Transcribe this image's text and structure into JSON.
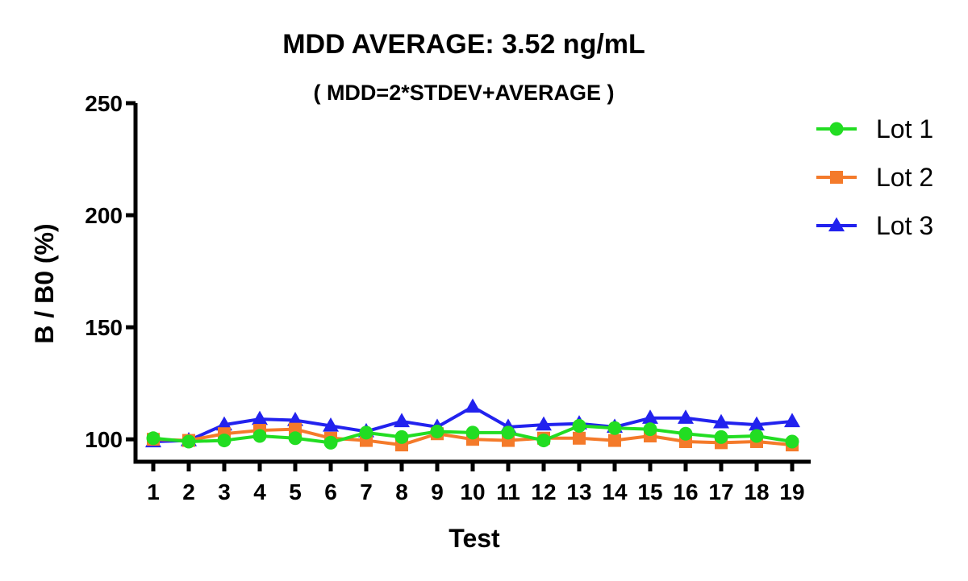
{
  "chart_data": {
    "type": "line",
    "title": "MDD AVERAGE:  3.52 ng/mL",
    "subtitle": "( MDD=2*STDEV+AVERAGE )",
    "xlabel": "Test",
    "ylabel": "B / B0 (%)",
    "ylim": [
      90,
      250
    ],
    "yticks": [
      100,
      150,
      200,
      250
    ],
    "x": [
      1,
      2,
      3,
      4,
      5,
      6,
      7,
      8,
      9,
      10,
      11,
      12,
      13,
      14,
      15,
      16,
      17,
      18,
      19
    ],
    "legend_position": "top-right",
    "grid": false,
    "series": [
      {
        "name": "Lot 1",
        "color": "#22dd22",
        "marker": "circle",
        "values": [
          100.5,
          99,
          99.5,
          101.5,
          100.5,
          98.5,
          103,
          101,
          103.5,
          103,
          103,
          99.5,
          106,
          105,
          104.5,
          102.5,
          101,
          101.5,
          99
        ]
      },
      {
        "name": "Lot 2",
        "color": "#f47a2a",
        "marker": "square",
        "values": [
          100,
          99.5,
          102.5,
          104,
          104.5,
          100.5,
          99.5,
          97.5,
          102.5,
          100,
          99.5,
          100.5,
          100.5,
          99.5,
          101.5,
          99,
          98.5,
          99,
          97.5
        ]
      },
      {
        "name": "Lot 3",
        "color": "#2222ee",
        "marker": "triangle",
        "values": [
          99,
          99.5,
          106.5,
          109,
          108.5,
          106,
          103.5,
          108,
          105.5,
          114.5,
          105.5,
          106.5,
          107,
          105.5,
          109.5,
          109.5,
          107.5,
          106.5,
          108
        ]
      }
    ]
  }
}
